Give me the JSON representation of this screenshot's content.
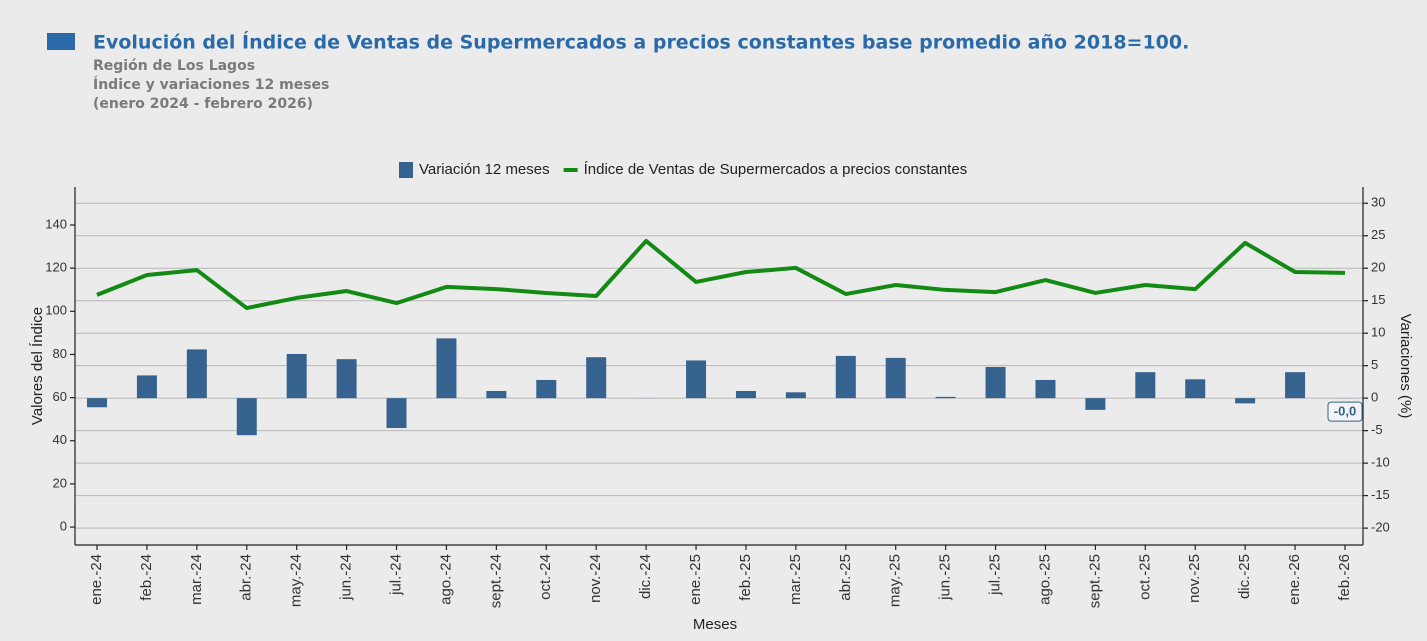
{
  "chart_data": {
    "type": "bar",
    "title": "Evolución del Índice de Ventas de Supermercados a precios constantes base promedio año 2018=100.",
    "subtitle": [
      "Región de Los Lagos",
      "Índice y variaciones 12 meses",
      "(enero 2024 - febrero 2026)"
    ],
    "xlabel": "Meses",
    "ylabel": "Valores del Índice",
    "y2label": "Variaciones (%)",
    "categories": [
      "ene.-24",
      "feb.-24",
      "mar.-24",
      "abr.-24",
      "may.-24",
      "jun.-24",
      "jul.-24",
      "ago.-24",
      "sept.-24",
      "oct.-24",
      "nov.-24",
      "dic.-24",
      "ene.-25",
      "feb.-25",
      "mar.-25",
      "abr.-25",
      "may.-25",
      "jun.-25",
      "jul.-25",
      "ago.-25",
      "sept.-25",
      "oct.-25",
      "nov.-25",
      "dic.-25",
      "ene.-26",
      "feb.-26"
    ],
    "series": [
      {
        "name": "Variación 12 meses",
        "type": "bar",
        "axis": "y2",
        "color": "#35628e",
        "values": [
          -1.4,
          3.5,
          7.5,
          -5.7,
          6.8,
          6.0,
          -4.6,
          9.2,
          1.1,
          2.8,
          6.3,
          0.0,
          5.8,
          1.1,
          0.9,
          6.5,
          6.2,
          0.2,
          4.8,
          2.8,
          -1.8,
          4.0,
          2.9,
          -0.8,
          4.0,
          -0.02
        ],
        "value_labels": [
          null,
          null,
          null,
          null,
          null,
          null,
          null,
          null,
          null,
          null,
          null,
          null,
          null,
          null,
          null,
          null,
          null,
          null,
          null,
          null,
          null,
          null,
          null,
          null,
          null,
          "-0,0"
        ]
      },
      {
        "name": "Índice de Ventas de Supermercados a precios constantes",
        "type": "line",
        "color": "#138a13",
        "values": [
          107.6,
          116.8,
          119.1,
          101.5,
          106.2,
          109.4,
          103.8,
          111.3,
          110.3,
          108.5,
          107.1,
          132.6,
          113.6,
          118.2,
          120.1,
          108.0,
          112.2,
          109.9,
          108.9,
          114.5,
          108.5,
          112.2,
          110.3,
          131.7,
          118.2,
          117.8
        ]
      }
    ],
    "ylim": [
      -8.3,
      157.6
    ],
    "yticks": [
      0,
      20,
      40,
      60,
      80,
      100,
      120,
      140
    ],
    "y2lim": [
      -22.6,
      32.5
    ],
    "y2ticks": [
      -20,
      -15,
      -10,
      -5,
      0,
      5,
      10,
      15,
      20,
      25,
      30
    ],
    "grid": true,
    "legend": "top"
  }
}
